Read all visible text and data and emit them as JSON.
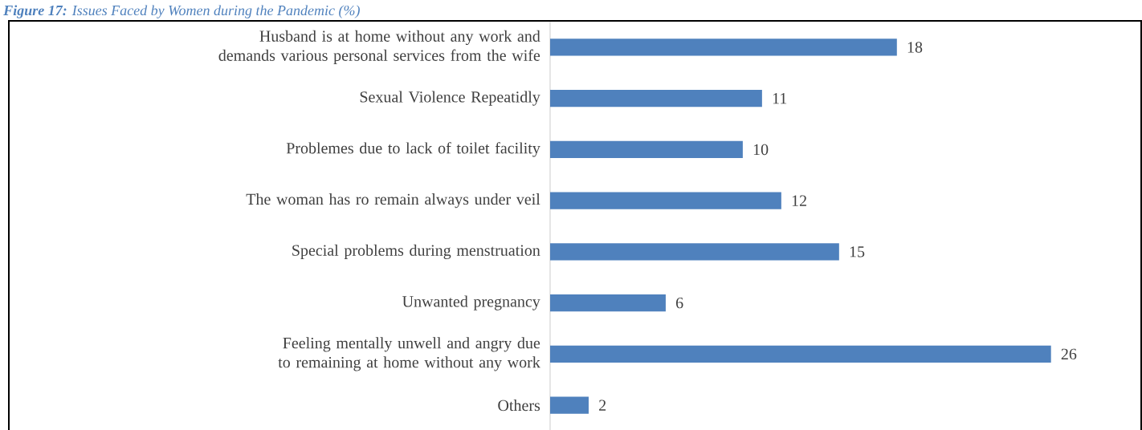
{
  "chart_data": {
    "type": "bar",
    "orientation": "horizontal",
    "title": "**Figure 17:** Issues Faced by Women during the Pandemic (%)",
    "categories": [
      "Husband is at home without any work and demands various personal services from the wife",
      "Sexual  Violence Repeatidly",
      "Problemes due to lack of toilet facility",
      "The woman has ro remain always under veil",
      "Special problems during menstruation",
      "Unwanted pregnancy",
      "Feeling mentally unwell and angry due to remaining at home without any work",
      "Others"
    ],
    "values": [
      18,
      11,
      10,
      12,
      15,
      6,
      26,
      2
    ],
    "color": "#4f81bd",
    "data_labels": true
  }
}
